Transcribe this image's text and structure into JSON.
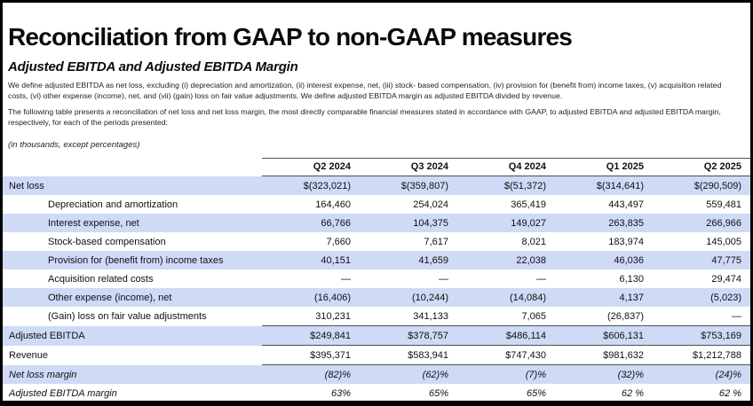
{
  "page": {
    "title": "Reconciliation from GAAP to non-GAAP measures",
    "subtitle": "Adjusted EBITDA and Adjusted EBITDA Margin",
    "paragraph1": "We define adjusted EBITDA as net loss, excluding (i) depreciation and amortization, (ii) interest expense, net, (iii) stock- based compensation, (iv) provision for (benefit from) income taxes, (v) acquisition related costs, (vi) other expense (income), net, and (vii) (gain) loss on fair value adjustments. We define adjusted EBITDA margin as adjusted EBITDA divided by revenue.",
    "paragraph2": "The following table presents a reconciliation of net loss and net loss margin, the most directly comparable financial measures stated in accordance with GAAP, to adjusted EBITDA and adjusted EBITDA margin, respectively, for each of the periods presented:",
    "units_note": "(in thousands, except percentages)"
  },
  "chart_data": {
    "type": "table",
    "title": "Reconciliation from GAAP to non-GAAP measures — Adjusted EBITDA and Adjusted EBITDA Margin",
    "columns": [
      "Q2 2024",
      "Q3 2024",
      "Q4 2024",
      "Q1 2025",
      "Q2 2025"
    ],
    "rows": [
      {
        "label": "Net loss",
        "values": [
          "$(323,021)",
          "$(359,807)",
          "$(51,372)",
          "$(314,641)",
          "$(290,509)"
        ],
        "indent": false,
        "highlight": true,
        "italic": false,
        "rule_below": false
      },
      {
        "label": "Depreciation and amortization",
        "values": [
          "164,460",
          "254,024",
          "365,419",
          "443,497",
          "559,481"
        ],
        "indent": true,
        "highlight": false,
        "italic": false,
        "rule_below": false
      },
      {
        "label": "Interest expense, net",
        "values": [
          "66,766",
          "104,375",
          "149,027",
          "263,835",
          "266,966"
        ],
        "indent": true,
        "highlight": true,
        "italic": false,
        "rule_below": false
      },
      {
        "label": "Stock-based compensation",
        "values": [
          "7,660",
          "7,617",
          "8,021",
          "183,974",
          "145,005"
        ],
        "indent": true,
        "highlight": false,
        "italic": false,
        "rule_below": false
      },
      {
        "label": "Provision for (benefit from) income taxes",
        "values": [
          "40,151",
          "41,659",
          "22,038",
          "46,036",
          "47,775"
        ],
        "indent": true,
        "highlight": true,
        "italic": false,
        "rule_below": false
      },
      {
        "label": "Acquisition related costs",
        "values": [
          "—",
          "—",
          "—",
          "6,130",
          "29,474"
        ],
        "indent": true,
        "highlight": false,
        "italic": false,
        "rule_below": false
      },
      {
        "label": "Other expense (income), net",
        "values": [
          "(16,406)",
          "(10,244)",
          "(14,084)",
          "4,137",
          "(5,023)"
        ],
        "indent": true,
        "highlight": true,
        "italic": false,
        "rule_below": false
      },
      {
        "label": "(Gain) loss on fair value adjustments",
        "values": [
          "310,231",
          "341,133",
          "7,065",
          "(26,837)",
          "—"
        ],
        "indent": true,
        "highlight": false,
        "italic": false,
        "rule_below": true
      },
      {
        "label": "Adjusted EBITDA",
        "values": [
          "$249,841",
          "$378,757",
          "$486,114",
          "$606,131",
          "$753,169"
        ],
        "indent": false,
        "highlight": true,
        "italic": false,
        "rule_below": true
      },
      {
        "label": "Revenue",
        "values": [
          "$395,371",
          "$583,941",
          "$747,430",
          "$981,632",
          "$1,212,788"
        ],
        "indent": false,
        "highlight": false,
        "italic": false,
        "rule_below": true
      },
      {
        "label": "Net loss margin",
        "values": [
          "(82)%",
          "(62)%",
          "(7)%",
          "(32)%",
          "(24)%"
        ],
        "indent": false,
        "highlight": true,
        "italic": true,
        "rule_below": false
      },
      {
        "label": "Adjusted EBITDA margin",
        "values": [
          "63%",
          "65%",
          "65%",
          "62 %",
          "62 %"
        ],
        "indent": false,
        "highlight": false,
        "italic": true,
        "rule_below": false
      }
    ]
  },
  "colors": {
    "highlight_row": "#cedaf6",
    "rule_line": "#4f4f4f",
    "text": "#111111",
    "frame_border": "#000000"
  }
}
